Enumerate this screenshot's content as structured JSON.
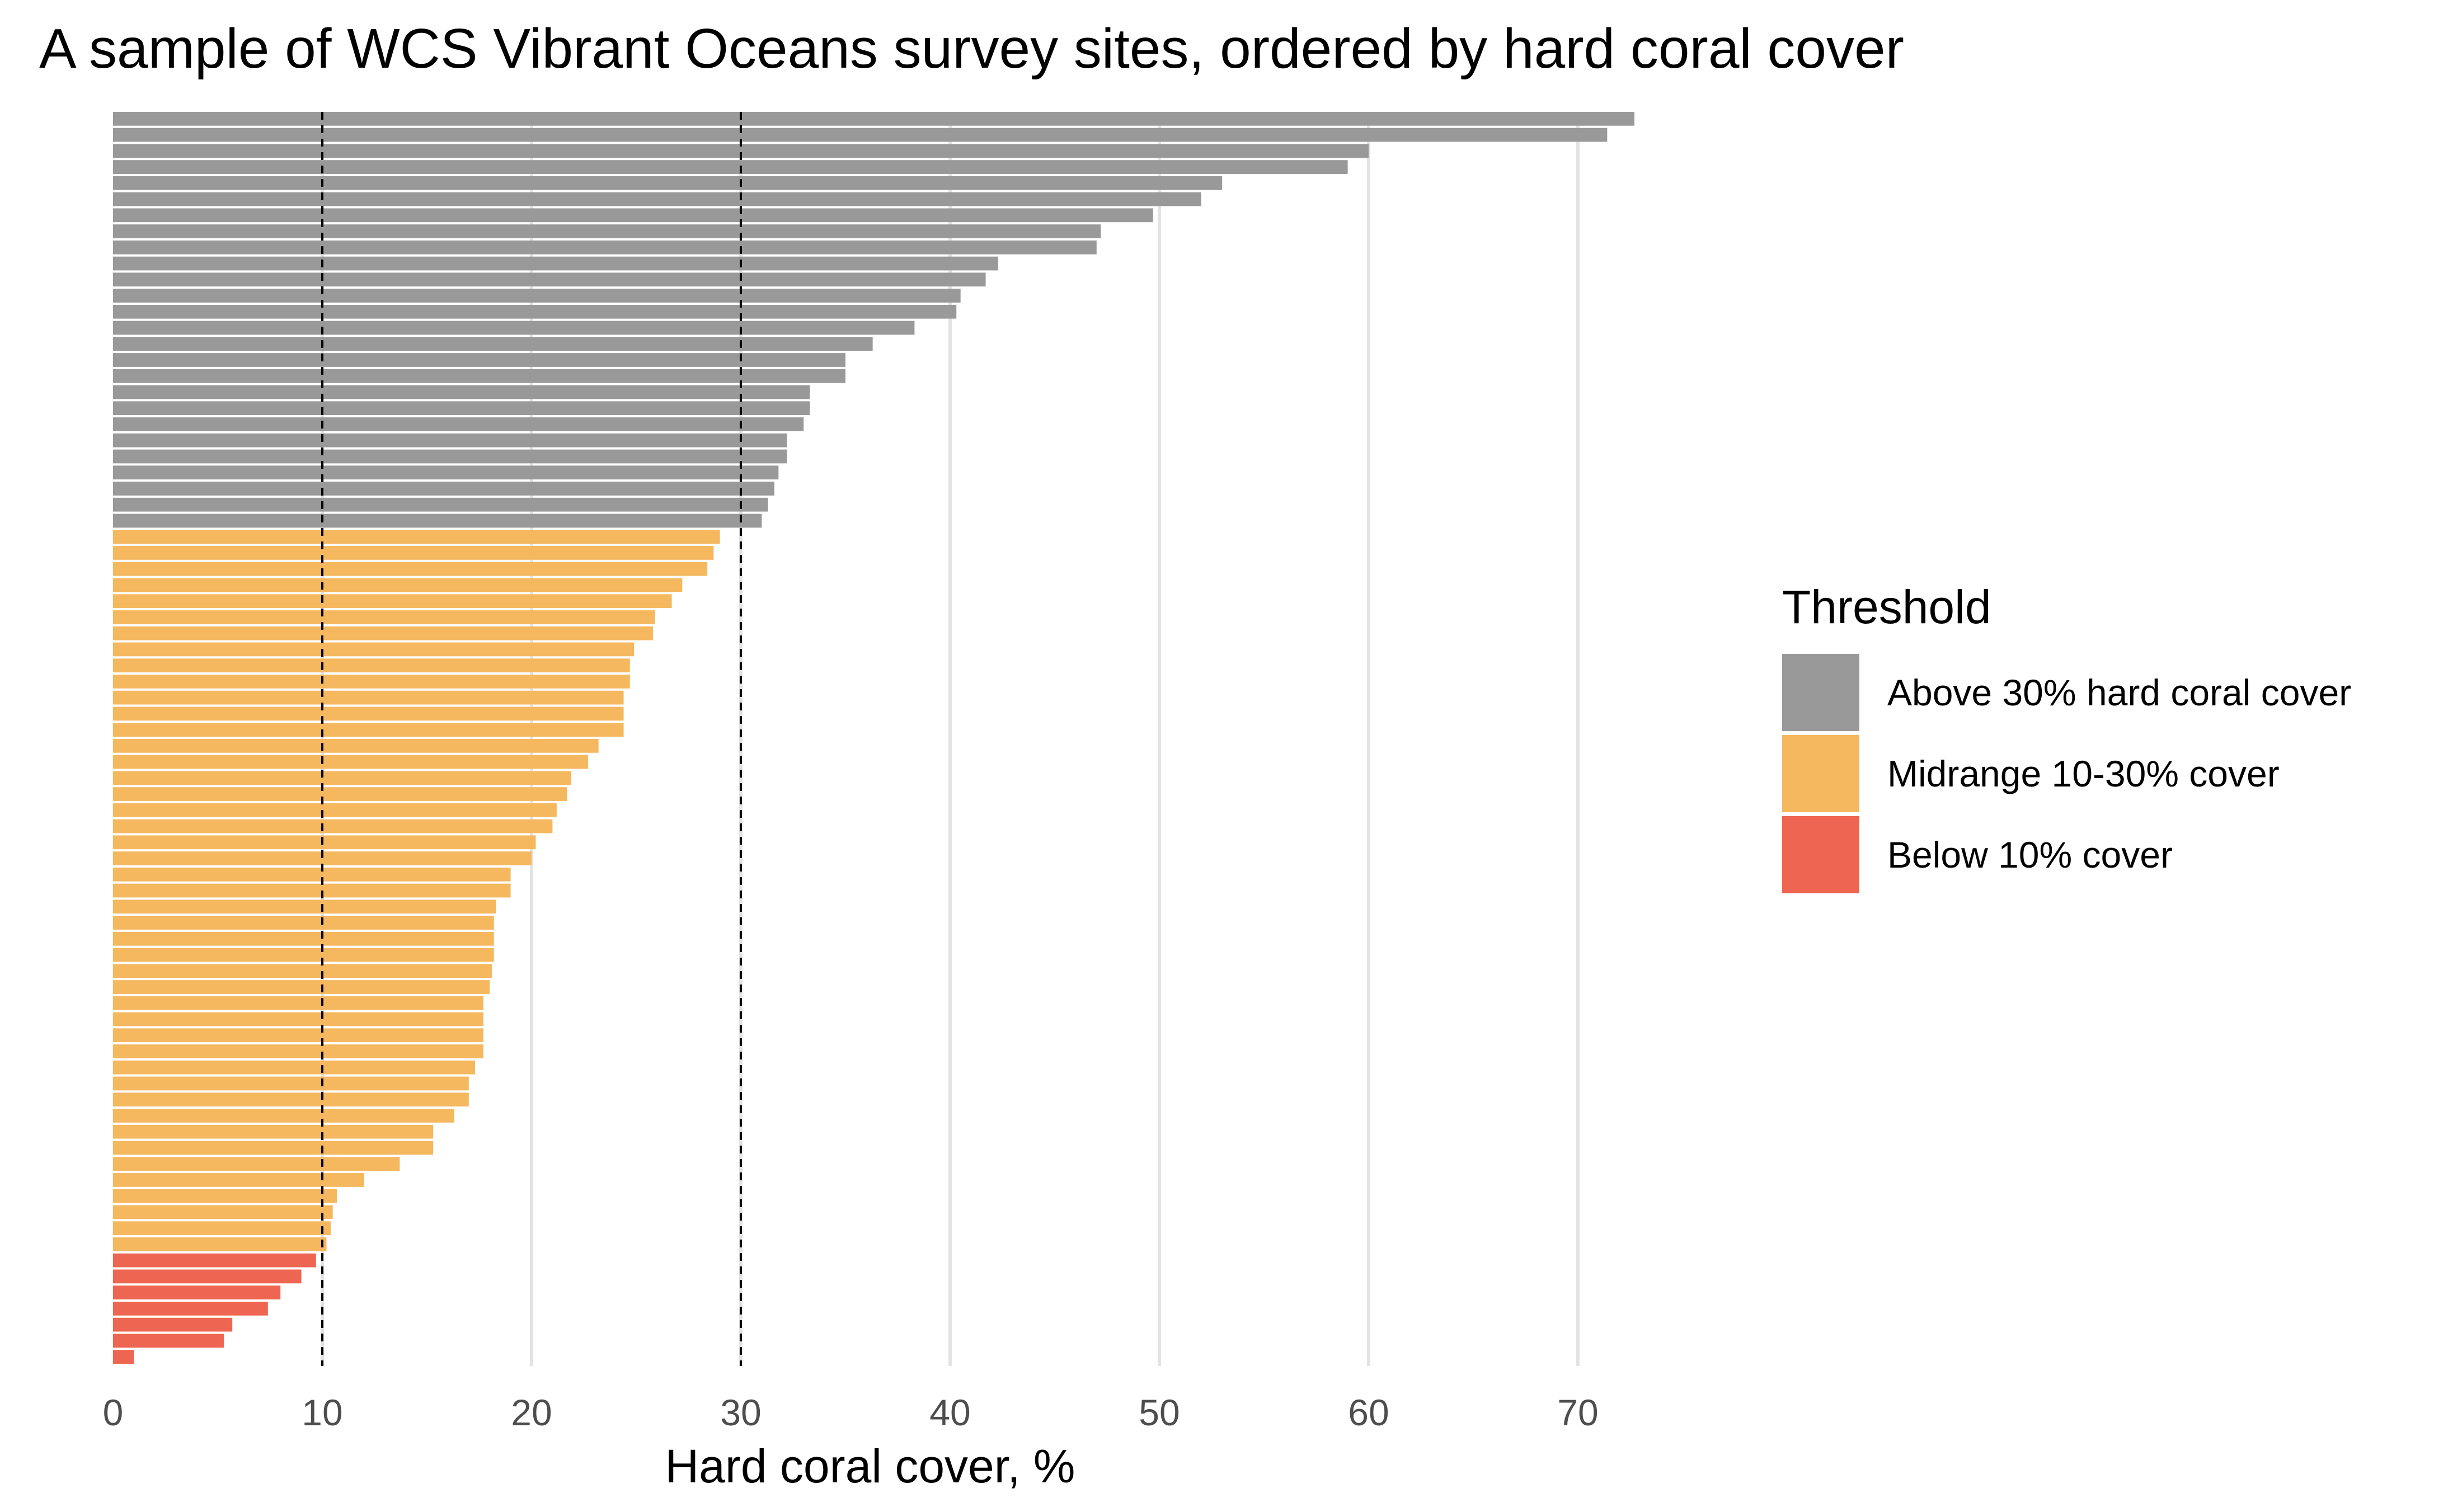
{
  "chart_data": {
    "type": "bar",
    "orientation": "horizontal",
    "title": "A sample of WCS Vibrant Oceans survey sites, ordered by hard coral cover",
    "xlabel": "Hard coral cover, %",
    "ylabel": "",
    "xlim": [
      0,
      75
    ],
    "xticks": [
      0,
      10,
      20,
      30,
      40,
      50,
      60,
      70
    ],
    "grid": "vertical major gridlines",
    "reference_lines": [
      10,
      30
    ],
    "legend": {
      "title": "Threshold",
      "position": "right",
      "entries": [
        {
          "label": "Above 30% hard coral cover",
          "color": "#999999"
        },
        {
          "label": "Midrange 10-30% cover",
          "color": "#F5B85F"
        },
        {
          "label": "Below 10% cover",
          "color": "#EE6651"
        }
      ]
    },
    "series": [
      {
        "name": "Above 30% hard coral cover",
        "color": "#999999",
        "values": [
          72.7,
          71.4,
          60.0,
          59.0,
          53.0,
          52.0,
          49.7,
          47.2,
          47.0,
          42.3,
          41.7,
          40.5,
          40.3,
          38.3,
          36.3,
          35.0,
          35.0,
          33.3,
          33.3,
          33.0,
          32.2,
          32.2,
          31.8,
          31.6,
          31.3,
          31.0
        ]
      },
      {
        "name": "Midrange 10-30% cover",
        "color": "#F5B85F",
        "values": [
          29.0,
          28.7,
          28.4,
          27.2,
          26.7,
          25.9,
          25.8,
          24.9,
          24.7,
          24.7,
          24.4,
          24.4,
          24.4,
          23.2,
          22.7,
          21.9,
          21.7,
          21.2,
          21.0,
          20.2,
          20.0,
          19.0,
          19.0,
          18.3,
          18.2,
          18.2,
          18.2,
          18.1,
          18.0,
          17.7,
          17.7,
          17.7,
          17.7,
          17.3,
          17.0,
          17.0,
          16.3,
          15.3,
          15.3,
          13.7,
          12.0,
          10.7,
          10.5,
          10.4,
          10.2
        ]
      },
      {
        "name": "Below 10% cover",
        "color": "#EE6651",
        "values": [
          9.7,
          9.0,
          8.0,
          7.4,
          5.7,
          5.3,
          1.0
        ]
      }
    ]
  }
}
